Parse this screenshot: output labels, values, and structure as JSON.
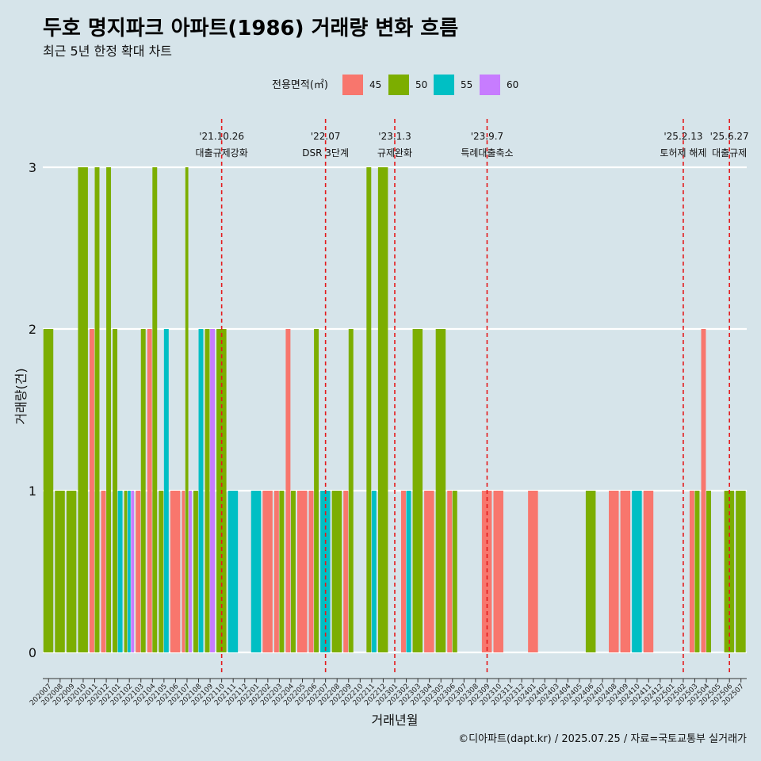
{
  "chart_data": {
    "type": "bar",
    "title": "두호 명지파크 아파트(1986) 거래량 변화 흐름",
    "subtitle": "최근 5년 한정 확대 차트",
    "xlabel": "거래년월",
    "ylabel": "거래량(건)",
    "caption": "©디아파트(dapt.kr) / 2025.07.25 / 자료=국토교통부 실거래가",
    "legend": {
      "title": "전용면적(㎡)",
      "position": "top",
      "items": [
        {
          "name": "45",
          "color": "#F8766D"
        },
        {
          "name": "50",
          "color": "#7CAE00"
        },
        {
          "name": "55",
          "color": "#00BFC4"
        },
        {
          "name": "60",
          "color": "#C77CFF"
        }
      ]
    },
    "ylim": [
      0,
      3
    ],
    "yticks": [
      0,
      1,
      2,
      3
    ],
    "categories": [
      "202007",
      "202008",
      "202009",
      "202010",
      "202011",
      "202012",
      "202101",
      "202102",
      "202103",
      "202104",
      "202105",
      "202106",
      "202107",
      "202108",
      "202109",
      "202110",
      "202111",
      "202112",
      "202201",
      "202202",
      "202203",
      "202204",
      "202205",
      "202206",
      "202207",
      "202208",
      "202209",
      "202210",
      "202211",
      "202212",
      "202301",
      "202302",
      "202303",
      "202304",
      "202305",
      "202306",
      "202307",
      "202308",
      "202309",
      "202310",
      "202311",
      "202312",
      "202401",
      "202402",
      "202403",
      "202404",
      "202405",
      "202406",
      "202407",
      "202408",
      "202409",
      "202410",
      "202411",
      "202412",
      "202501",
      "202502",
      "202503",
      "202504",
      "202505",
      "202506",
      "202507"
    ],
    "bars": [
      {
        "month": "202007",
        "groups": [
          {
            "area": "50",
            "value": 2
          }
        ]
      },
      {
        "month": "202008",
        "groups": [
          {
            "area": "50",
            "value": 1
          }
        ]
      },
      {
        "month": "202009",
        "groups": [
          {
            "area": "50",
            "value": 1
          }
        ]
      },
      {
        "month": "202010",
        "groups": [
          {
            "area": "50",
            "value": 3
          }
        ]
      },
      {
        "month": "202011",
        "groups": [
          {
            "area": "45",
            "value": 2
          },
          {
            "area": "50",
            "value": 3
          }
        ]
      },
      {
        "month": "202012",
        "groups": [
          {
            "area": "45",
            "value": 1
          },
          {
            "area": "50",
            "value": 3
          }
        ]
      },
      {
        "month": "202101",
        "groups": [
          {
            "area": "50",
            "value": 2
          },
          {
            "area": "55",
            "value": 1
          }
        ]
      },
      {
        "month": "202102",
        "groups": [
          {
            "area": "50",
            "value": 1
          },
          {
            "area": "55",
            "value": 1
          },
          {
            "area": "60",
            "value": 1
          }
        ]
      },
      {
        "month": "202103",
        "groups": [
          {
            "area": "45",
            "value": 1
          },
          {
            "area": "50",
            "value": 2
          }
        ]
      },
      {
        "month": "202104",
        "groups": [
          {
            "area": "45",
            "value": 2
          },
          {
            "area": "50",
            "value": 3
          }
        ]
      },
      {
        "month": "202105",
        "groups": [
          {
            "area": "50",
            "value": 1
          },
          {
            "area": "55",
            "value": 2
          }
        ]
      },
      {
        "month": "202106",
        "groups": [
          {
            "area": "45",
            "value": 1
          }
        ]
      },
      {
        "month": "202107",
        "groups": [
          {
            "area": "45",
            "value": 1
          },
          {
            "area": "50",
            "value": 3
          },
          {
            "area": "60",
            "value": 1
          }
        ]
      },
      {
        "month": "202108",
        "groups": [
          {
            "area": "50",
            "value": 1
          },
          {
            "area": "55",
            "value": 2
          }
        ]
      },
      {
        "month": "202109",
        "groups": [
          {
            "area": "50",
            "value": 2
          },
          {
            "area": "60",
            "value": 2
          }
        ]
      },
      {
        "month": "202110",
        "groups": [
          {
            "area": "50",
            "value": 2
          }
        ]
      },
      {
        "month": "202111",
        "groups": [
          {
            "area": "55",
            "value": 1
          }
        ]
      },
      {
        "month": "202112",
        "groups": []
      },
      {
        "month": "202201",
        "groups": [
          {
            "area": "55",
            "value": 1
          }
        ]
      },
      {
        "month": "202202",
        "groups": [
          {
            "area": "45",
            "value": 1
          }
        ]
      },
      {
        "month": "202203",
        "groups": [
          {
            "area": "45",
            "value": 1
          },
          {
            "area": "50",
            "value": 1
          }
        ]
      },
      {
        "month": "202204",
        "groups": [
          {
            "area": "45",
            "value": 2
          },
          {
            "area": "50",
            "value": 1
          }
        ]
      },
      {
        "month": "202205",
        "groups": [
          {
            "area": "45",
            "value": 1
          }
        ]
      },
      {
        "month": "202206",
        "groups": [
          {
            "area": "45",
            "value": 1
          },
          {
            "area": "50",
            "value": 2
          }
        ]
      },
      {
        "month": "202207",
        "groups": [
          {
            "area": "55",
            "value": 1
          }
        ]
      },
      {
        "month": "202208",
        "groups": [
          {
            "area": "50",
            "value": 1
          }
        ]
      },
      {
        "month": "202209",
        "groups": [
          {
            "area": "45",
            "value": 1
          },
          {
            "area": "50",
            "value": 2
          }
        ]
      },
      {
        "month": "202210",
        "groups": []
      },
      {
        "month": "202211",
        "groups": [
          {
            "area": "50",
            "value": 3
          },
          {
            "area": "55",
            "value": 1
          }
        ]
      },
      {
        "month": "202212",
        "groups": [
          {
            "area": "50",
            "value": 3
          }
        ]
      },
      {
        "month": "202301",
        "groups": []
      },
      {
        "month": "202302",
        "groups": [
          {
            "area": "45",
            "value": 1
          },
          {
            "area": "55",
            "value": 1
          }
        ]
      },
      {
        "month": "202303",
        "groups": [
          {
            "area": "50",
            "value": 2
          }
        ]
      },
      {
        "month": "202304",
        "groups": [
          {
            "area": "45",
            "value": 1
          }
        ]
      },
      {
        "month": "202305",
        "groups": [
          {
            "area": "50",
            "value": 2
          }
        ]
      },
      {
        "month": "202306",
        "groups": [
          {
            "area": "45",
            "value": 1
          },
          {
            "area": "50",
            "value": 1
          }
        ]
      },
      {
        "month": "202307",
        "groups": []
      },
      {
        "month": "202308",
        "groups": []
      },
      {
        "month": "202309",
        "groups": [
          {
            "area": "45",
            "value": 1
          }
        ]
      },
      {
        "month": "202310",
        "groups": [
          {
            "area": "45",
            "value": 1
          }
        ]
      },
      {
        "month": "202311",
        "groups": []
      },
      {
        "month": "202312",
        "groups": []
      },
      {
        "month": "202401",
        "groups": [
          {
            "area": "45",
            "value": 1
          }
        ]
      },
      {
        "month": "202402",
        "groups": []
      },
      {
        "month": "202403",
        "groups": []
      },
      {
        "month": "202404",
        "groups": []
      },
      {
        "month": "202405",
        "groups": []
      },
      {
        "month": "202406",
        "groups": [
          {
            "area": "50",
            "value": 1
          }
        ]
      },
      {
        "month": "202407",
        "groups": []
      },
      {
        "month": "202408",
        "groups": [
          {
            "area": "45",
            "value": 1
          }
        ]
      },
      {
        "month": "202409",
        "groups": [
          {
            "area": "45",
            "value": 1
          }
        ]
      },
      {
        "month": "202410",
        "groups": [
          {
            "area": "55",
            "value": 1
          }
        ]
      },
      {
        "month": "202411",
        "groups": [
          {
            "area": "45",
            "value": 1
          }
        ]
      },
      {
        "month": "202412",
        "groups": []
      },
      {
        "month": "202501",
        "groups": []
      },
      {
        "month": "202502",
        "groups": []
      },
      {
        "month": "202503",
        "groups": [
          {
            "area": "45",
            "value": 1
          },
          {
            "area": "50",
            "value": 1
          }
        ]
      },
      {
        "month": "202504",
        "groups": [
          {
            "area": "45",
            "value": 2
          },
          {
            "area": "50",
            "value": 1
          }
        ]
      },
      {
        "month": "202505",
        "groups": []
      },
      {
        "month": "202506",
        "groups": [
          {
            "area": "50",
            "value": 1
          }
        ]
      },
      {
        "month": "202507",
        "groups": [
          {
            "area": "50",
            "value": 1
          }
        ]
      }
    ],
    "annotations": [
      {
        "month": "202110",
        "date": "'21.10.26",
        "text": "대출규제강화",
        "small": false
      },
      {
        "month": "202207",
        "date": "'22.07",
        "text": "DSR 3단계",
        "small": false
      },
      {
        "month": "202301",
        "date": "'23.1.3",
        "text": "규제완화",
        "small": false
      },
      {
        "month": "202309",
        "date": "'23.9.7",
        "text": "특례대출축소",
        "small": false
      },
      {
        "month": "202502",
        "date": "'25.2.13",
        "text": "토허제 해제",
        "small": true
      },
      {
        "month": "202506",
        "date": "'25.6.27",
        "text": "대출규제",
        "small": false
      }
    ],
    "grid": true
  }
}
